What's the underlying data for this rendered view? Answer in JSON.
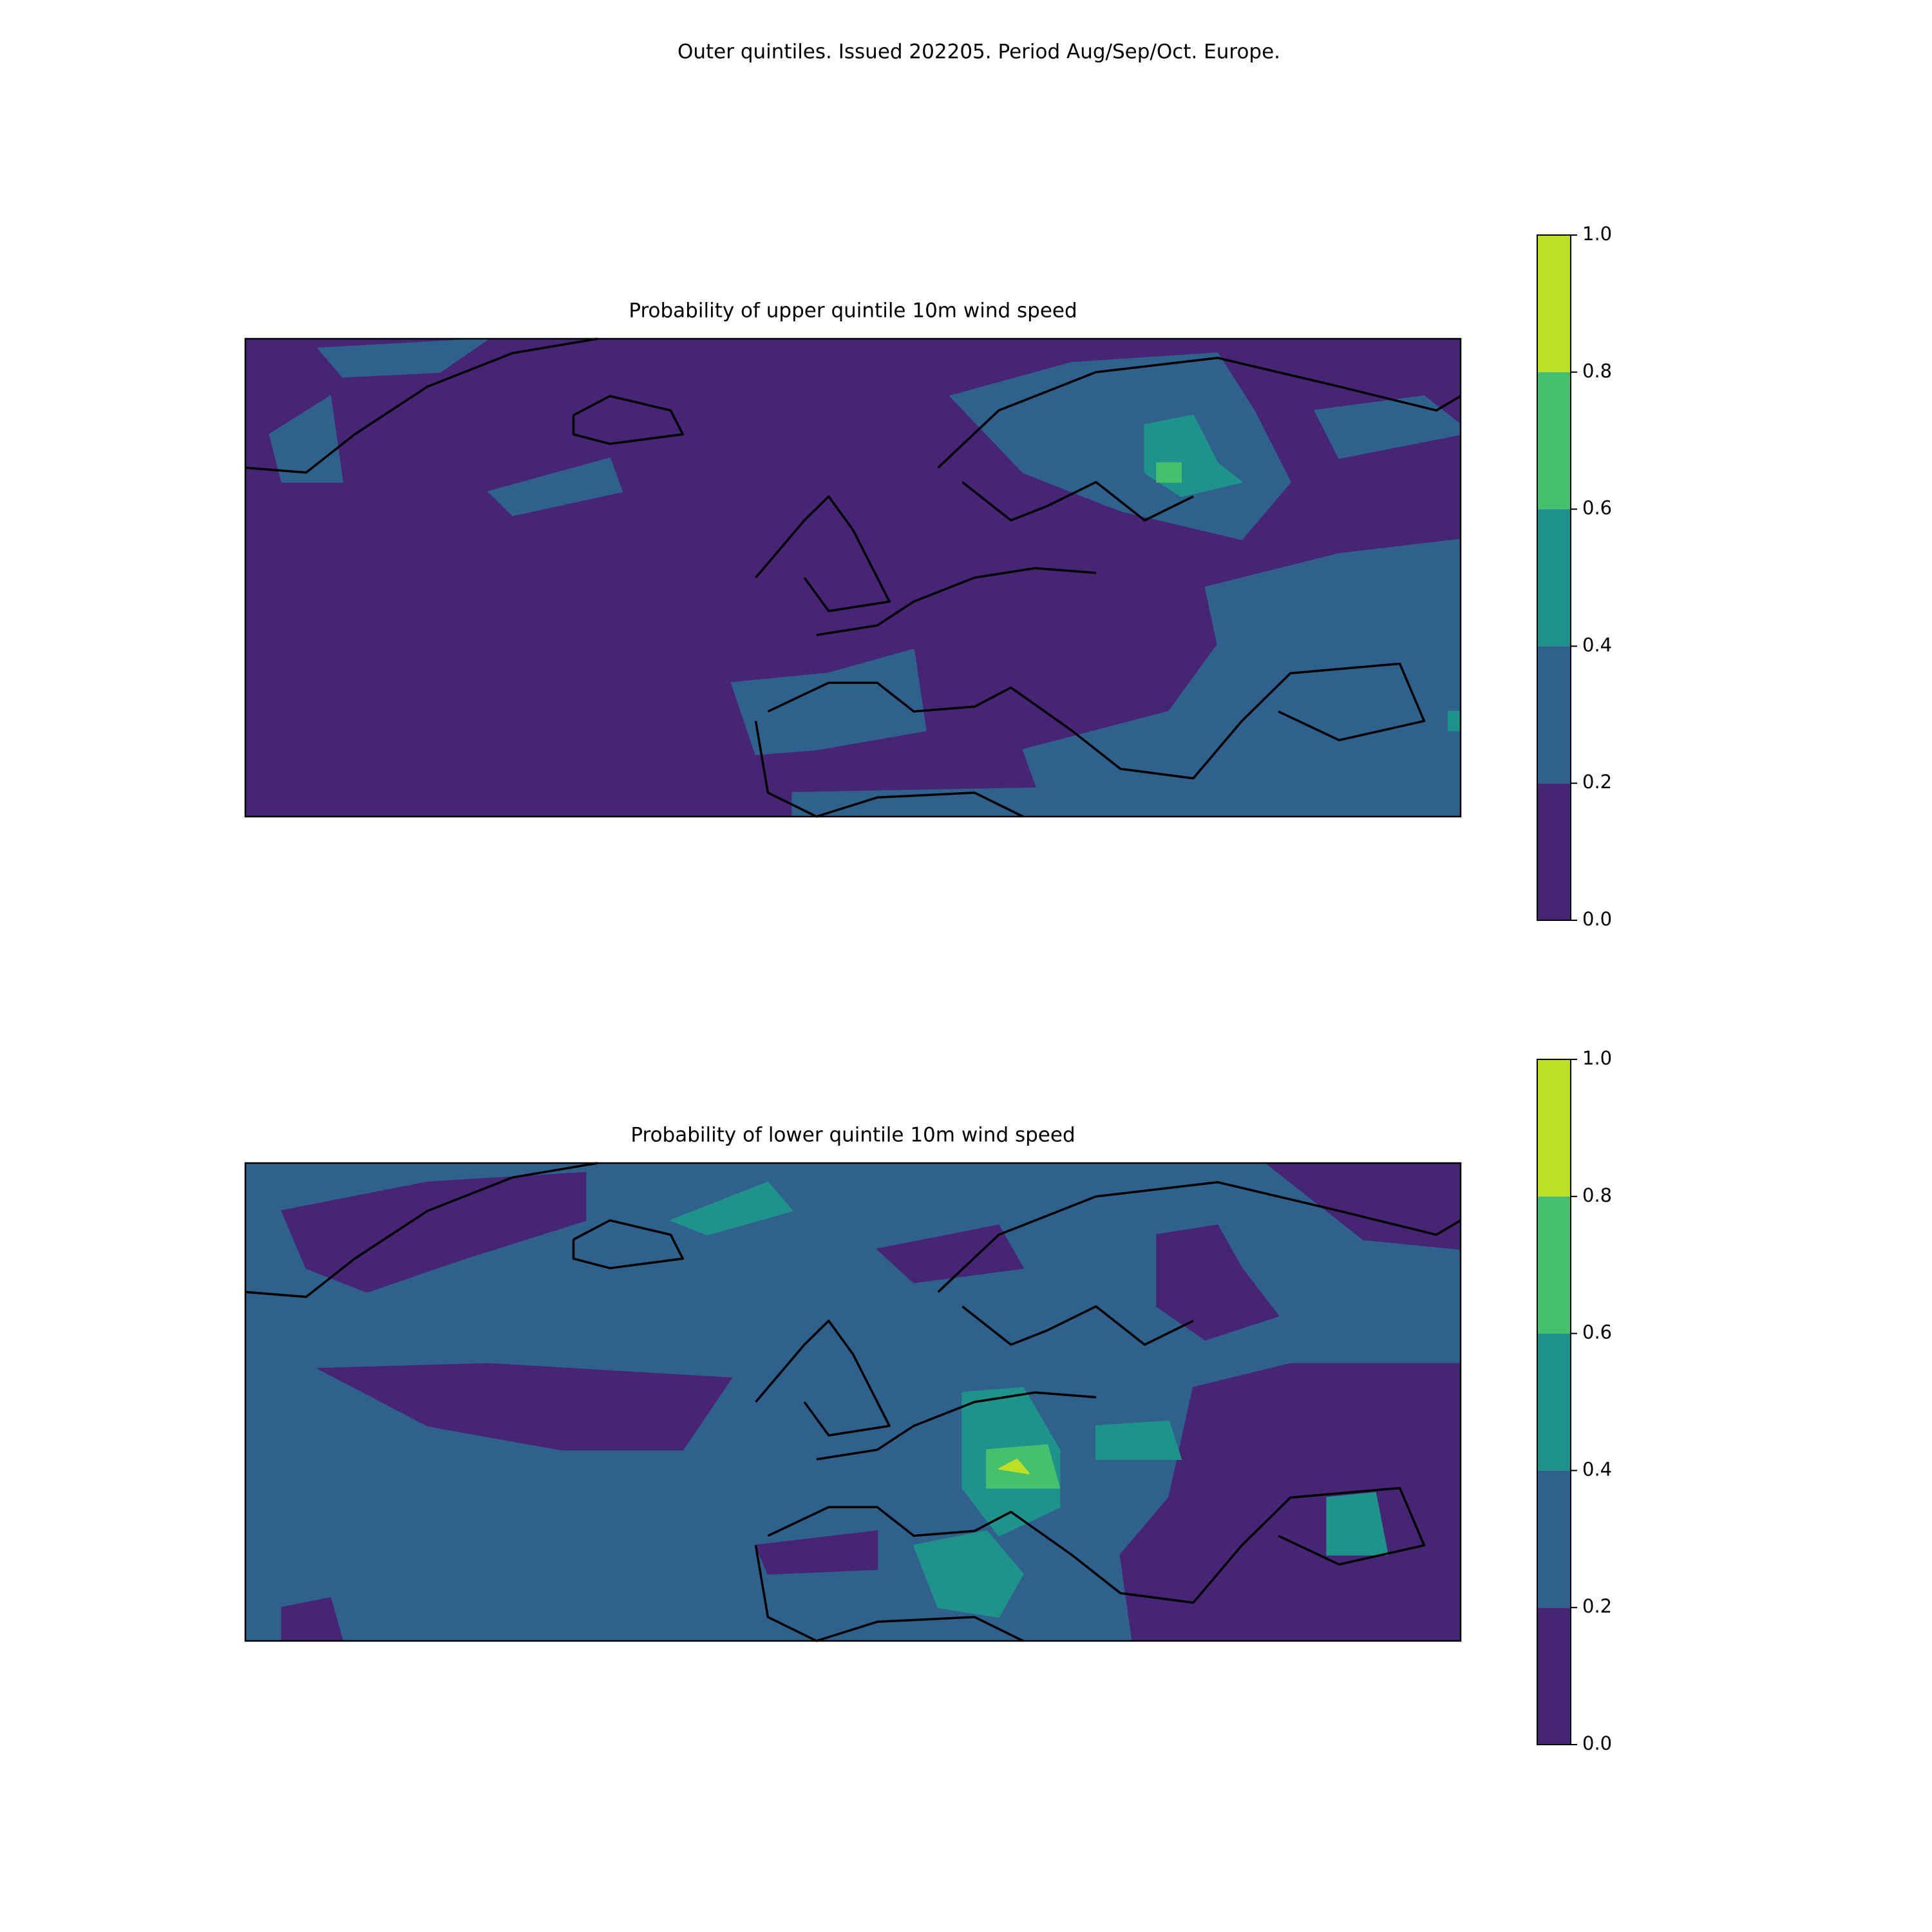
{
  "title": "Outer quintiles. Issued 202205. Period Aug/Sep/Oct. Europe.",
  "chart_data": [
    {
      "type": "contour",
      "title": "Probability of upper quintile 10m wind speed",
      "colorbar": {
        "lim": [
          0,
          1
        ],
        "ticks": [
          {
            "value": 0,
            "label": "0.0"
          },
          0.2,
          0.4,
          0.6,
          0.8,
          {
            "value": 1,
            "label": "1.0"
          }
        ],
        "colors": [
          "#472575",
          "#30608c",
          "#1f928b",
          "#46c06f",
          "#bddf26"
        ]
      }
    },
    {
      "type": "contour",
      "title": "Probability of lower quintile 10m wind speed",
      "colorbar": {
        "lim": [
          0,
          1
        ],
        "ticks": [
          {
            "value": 0,
            "label": "0.0"
          },
          0.2,
          0.4,
          0.6,
          0.8,
          {
            "value": 1,
            "label": "1.0"
          }
        ],
        "colors": [
          "#472575",
          "#30608c",
          "#1f928b",
          "#46c06f",
          "#bddf26"
        ]
      }
    }
  ]
}
